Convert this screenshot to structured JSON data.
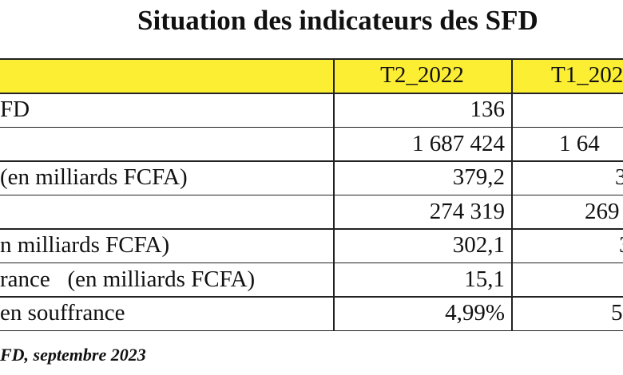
{
  "header": {
    "title": "Situation des indicateurs des SFD"
  },
  "table": {
    "columns": [
      "T2_2022",
      "T1_202"
    ],
    "rows": [
      {
        "label": "FD",
        "c1": "136"
      },
      {
        "c1": "1 687 424",
        "c2": "1 64"
      },
      {
        "label": "(en milliards FCFA)",
        "c1": "379,2",
        "c2": "3"
      },
      {
        "c1": "274 319",
        "c2": "269"
      },
      {
        "label": "n milliards FCFA)",
        "c1": "302,1",
        "c2": "3"
      },
      {
        "label": "rance   (en milliards FCFA)",
        "c1": "15,1"
      },
      {
        "label": "en souffrance",
        "c1": "4,99%",
        "c2": "5"
      }
    ]
  },
  "footer": {
    "source": "FD, septembre 2023"
  }
}
